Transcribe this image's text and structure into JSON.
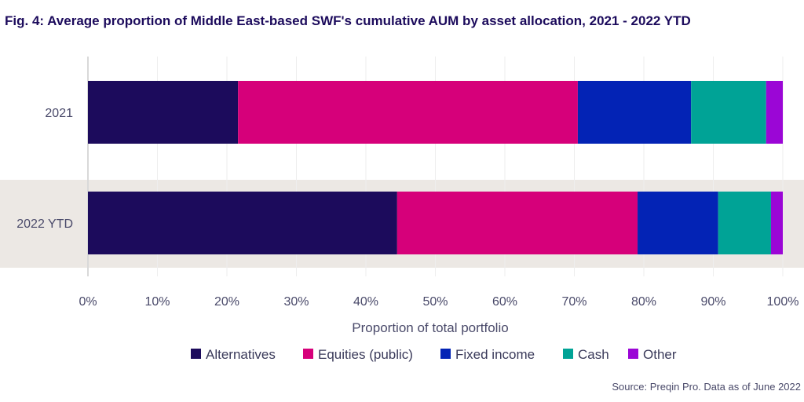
{
  "title": "Fig. 4: Average proportion of Middle East-based SWF's cumulative AUM by asset allocation, 2021 - 2022 YTD",
  "source": "Source: Preqin Pro. Data as of June 2022",
  "chart_data": {
    "type": "bar",
    "orientation": "horizontal",
    "stacked": true,
    "title": "Fig. 4: Average proportion of Middle East-based SWF's cumulative AUM by asset allocation, 2021 - 2022 YTD",
    "categories": [
      "2021",
      "2022 YTD"
    ],
    "xlabel": "Proportion of total portfolio",
    "ylabel": "",
    "xlim": [
      0,
      100
    ],
    "x_ticks": [
      "0%",
      "10%",
      "20%",
      "30%",
      "40%",
      "50%",
      "60%",
      "70%",
      "80%",
      "90%",
      "100%"
    ],
    "legend_position": "bottom",
    "series": [
      {
        "name": "Alternatives",
        "color": "#1c0b5c",
        "values": [
          21.6,
          44.5
        ]
      },
      {
        "name": "Equities (public)",
        "color": "#d6007a",
        "values": [
          48.9,
          34.6
        ]
      },
      {
        "name": "Fixed income",
        "color": "#0323b5",
        "values": [
          16.3,
          11.6
        ]
      },
      {
        "name": "Cash",
        "color": "#00a396",
        "values": [
          10.8,
          7.6
        ]
      },
      {
        "name": "Other",
        "color": "#9b06d6",
        "values": [
          2.4,
          1.7
        ]
      }
    ],
    "highlight_band_color": "#ece8e4",
    "grid": true
  }
}
